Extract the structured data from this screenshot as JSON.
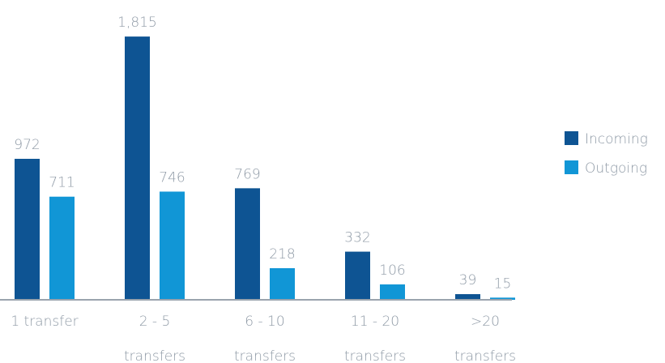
{
  "chart_data": {
    "type": "bar",
    "categories": [
      [
        "1 transfer"
      ],
      [
        "2 - 5",
        "transfers"
      ],
      [
        "6 - 10",
        "transfers"
      ],
      [
        "11 - 20",
        "transfers"
      ],
      [
        ">20",
        "transfers"
      ]
    ],
    "series": [
      {
        "name": "Incoming",
        "color": "#0e5493",
        "values": [
          972,
          1815,
          769,
          332,
          39
        ],
        "value_labels": [
          "972",
          "1,815",
          "769",
          "332",
          "39"
        ]
      },
      {
        "name": "Outgoing",
        "color": "#1196d6",
        "values": [
          711,
          746,
          218,
          106,
          15
        ],
        "value_labels": [
          "711",
          "746",
          "218",
          "106",
          "15"
        ]
      }
    ],
    "legend": "right"
  }
}
